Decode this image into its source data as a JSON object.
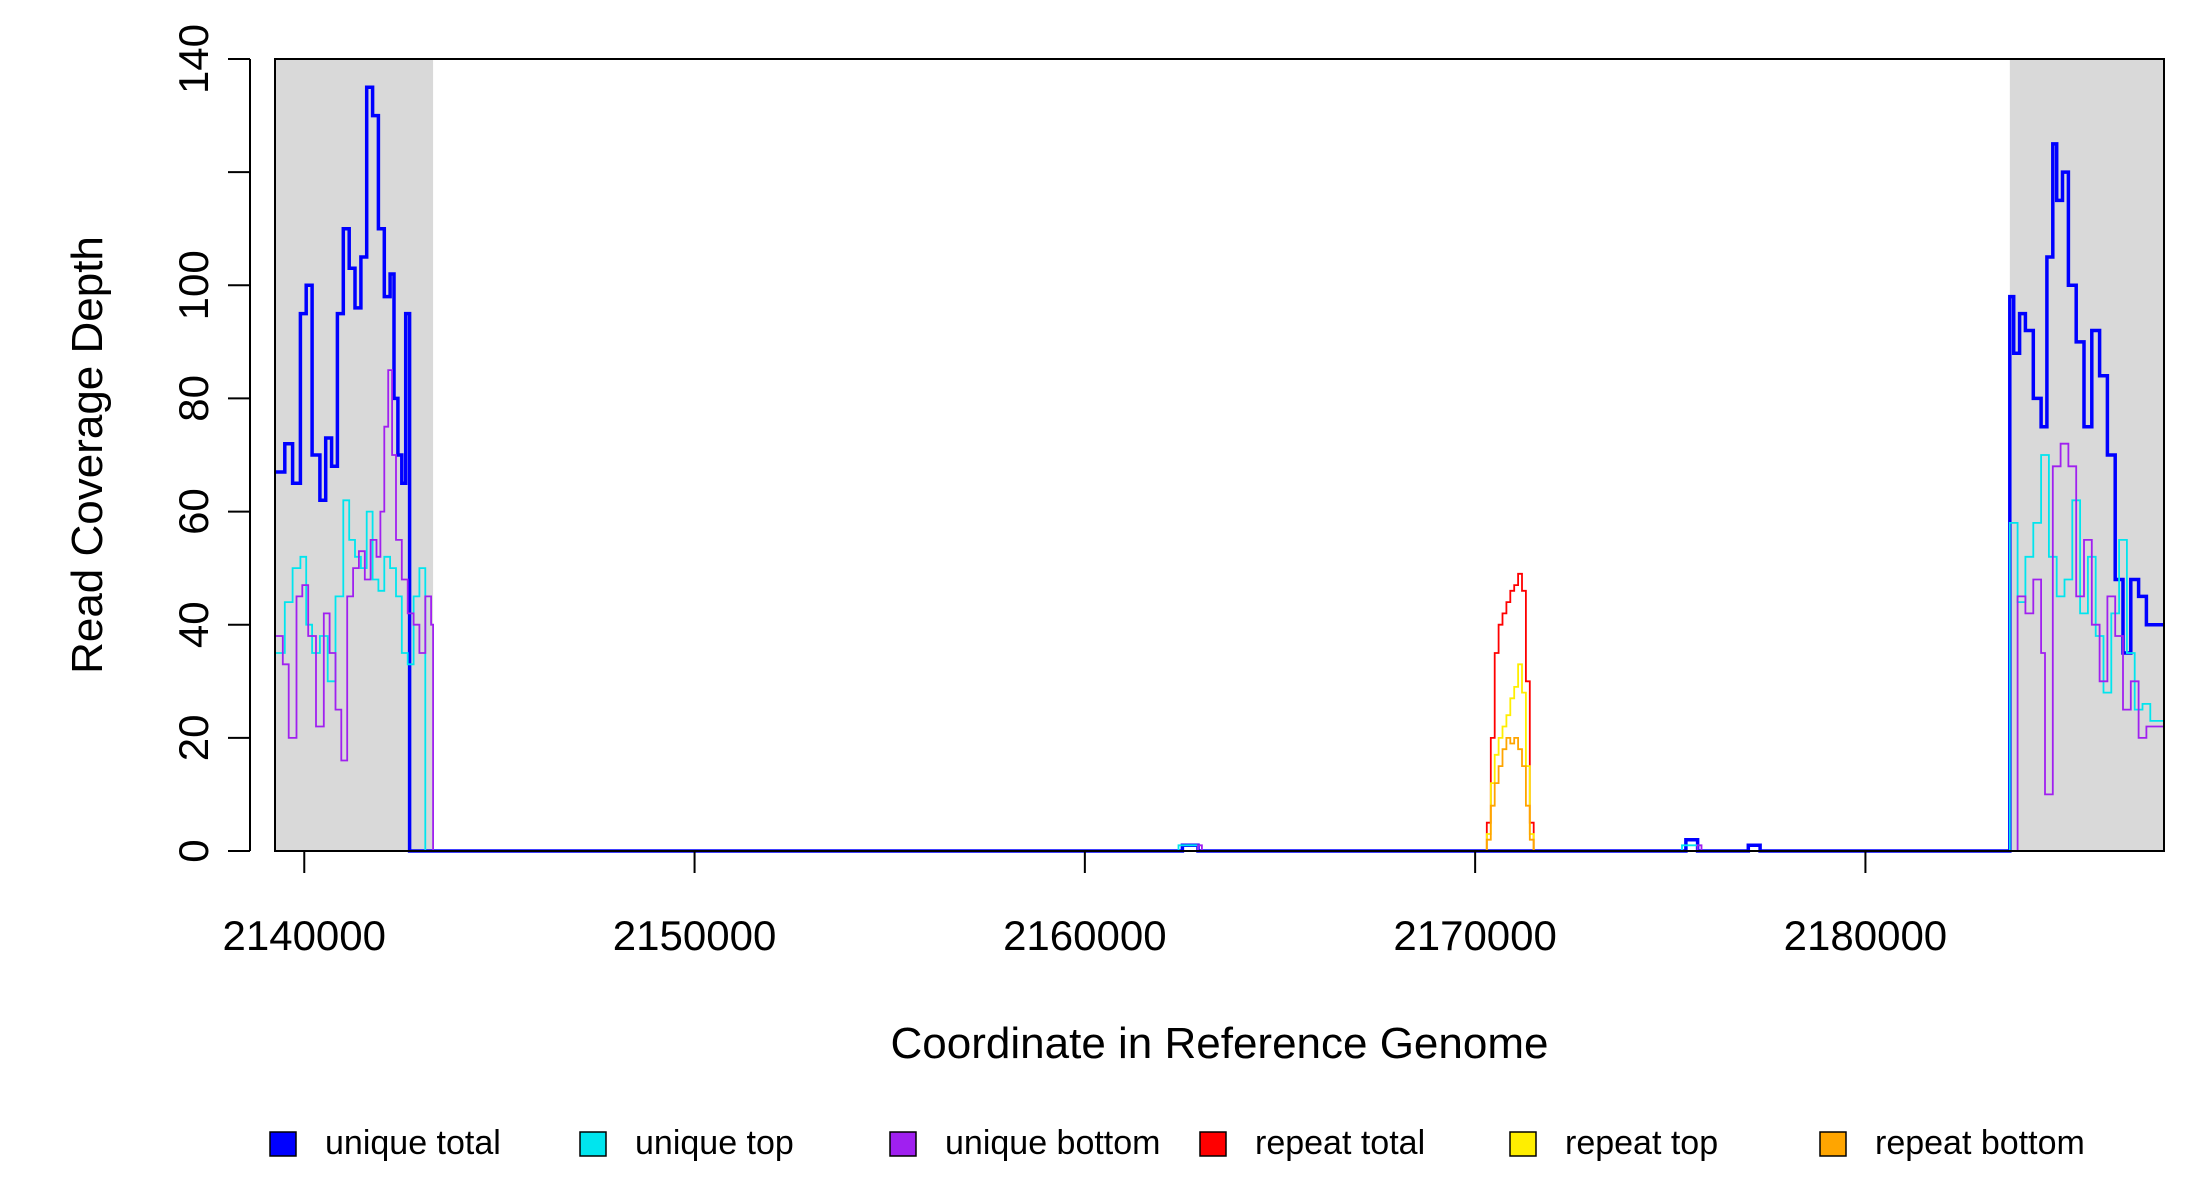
{
  "chart_data": {
    "type": "line",
    "xlabel": "Coordinate in Reference Genome",
    "ylabel": "Read Coverage Depth",
    "xlim": [
      2139250,
      2187650
    ],
    "ylim": [
      0,
      140
    ],
    "x_ticks": [
      2140000,
      2150000,
      2160000,
      2170000,
      2180000
    ],
    "x_tick_labels": [
      "2140000",
      "2150000",
      "2160000",
      "2170000",
      "2180000"
    ],
    "y_ticks": [
      0,
      20,
      40,
      60,
      80,
      100,
      120,
      140
    ],
    "y_tick_labels": [
      "0",
      "20",
      "40",
      "60",
      "80",
      "100",
      "",
      "140"
    ],
    "shaded_regions": [
      {
        "x0": 2139250,
        "x1": 2143300,
        "color": "#d9d9d9"
      },
      {
        "x0": 2183700,
        "x1": 2187650,
        "color": "#d9d9d9"
      }
    ],
    "legend_position": "bottom",
    "series": [
      {
        "name": "unique total",
        "color": "#0000ff",
        "x": [
          2139250,
          2139500,
          2139700,
          2139900,
          2140050,
          2140200,
          2140400,
          2140550,
          2140700,
          2140850,
          2141000,
          2141150,
          2141300,
          2141450,
          2141600,
          2141750,
          2141900,
          2142050,
          2142200,
          2142300,
          2142400,
          2142500,
          2142600,
          2142700,
          2142800,
          2142900,
          2143000,
          2143100,
          2143200,
          2143300,
          2143350,
          2143400,
          2150000,
          2160000,
          2162500,
          2162900,
          2163000,
          2170000,
          2175400,
          2175700,
          2175800,
          2177000,
          2177300,
          2177400,
          2183600,
          2183700,
          2183800,
          2183950,
          2184100,
          2184300,
          2184500,
          2184650,
          2184800,
          2184900,
          2185050,
          2185200,
          2185400,
          2185600,
          2185800,
          2186000,
          2186200,
          2186400,
          2186600,
          2186800,
          2187000,
          2187200,
          2187400,
          2187650
        ],
        "y": [
          67,
          72,
          65,
          95,
          100,
          70,
          62,
          73,
          68,
          95,
          110,
          103,
          96,
          105,
          135,
          130,
          110,
          98,
          102,
          80,
          70,
          65,
          95,
          0,
          0,
          0,
          0,
          0,
          0,
          0,
          0,
          0,
          0,
          0,
          1,
          0,
          0,
          0,
          2,
          0,
          0,
          1,
          0,
          0,
          0,
          98,
          88,
          95,
          92,
          80,
          75,
          105,
          125,
          115,
          120,
          100,
          90,
          75,
          92,
          84,
          70,
          48,
          35,
          48,
          45,
          40,
          40,
          40
        ]
      },
      {
        "name": "unique top",
        "color": "#00e5ee",
        "x": [
          2139250,
          2139500,
          2139700,
          2139900,
          2140050,
          2140200,
          2140400,
          2140600,
          2140800,
          2141000,
          2141150,
          2141300,
          2141450,
          2141600,
          2141750,
          2141900,
          2142050,
          2142200,
          2142350,
          2142500,
          2142650,
          2142800,
          2142950,
          2143100,
          2143250,
          2143350,
          2143400,
          2150000,
          2162400,
          2162900,
          2163000,
          2175300,
          2175700,
          2175800,
          2183600,
          2183700,
          2183900,
          2184100,
          2184300,
          2184500,
          2184700,
          2184900,
          2185100,
          2185300,
          2185500,
          2185700,
          2185900,
          2186100,
          2186300,
          2186500,
          2186700,
          2186900,
          2187100,
          2187300,
          2187650
        ],
        "y": [
          35,
          44,
          50,
          52,
          40,
          35,
          38,
          30,
          45,
          62,
          55,
          52,
          50,
          60,
          48,
          46,
          52,
          50,
          45,
          35,
          33,
          45,
          50,
          0,
          0,
          0,
          0,
          0,
          1,
          0,
          0,
          1,
          0,
          0,
          0,
          58,
          44,
          52,
          58,
          70,
          52,
          45,
          48,
          62,
          42,
          52,
          38,
          28,
          42,
          55,
          35,
          25,
          26,
          23,
          18
        ]
      },
      {
        "name": "unique bottom",
        "color": "#a020f0",
        "x": [
          2139250,
          2139450,
          2139600,
          2139800,
          2139950,
          2140100,
          2140300,
          2140500,
          2140650,
          2140800,
          2140950,
          2141100,
          2141250,
          2141400,
          2141550,
          2141700,
          2141850,
          2141950,
          2142050,
          2142150,
          2142250,
          2142350,
          2142500,
          2142650,
          2142800,
          2142950,
          2143100,
          2143250,
          2143300,
          2143350,
          2143400,
          2150000,
          2162500,
          2162900,
          2163000,
          2175400,
          2175700,
          2175800,
          2183600,
          2183700,
          2183900,
          2184100,
          2184300,
          2184500,
          2184600,
          2184800,
          2185000,
          2185200,
          2185400,
          2185600,
          2185800,
          2186000,
          2186200,
          2186400,
          2186600,
          2186800,
          2187000,
          2187200,
          2187400,
          2187650
        ],
        "y": [
          38,
          33,
          20,
          45,
          47,
          38,
          22,
          42,
          35,
          25,
          16,
          45,
          50,
          53,
          48,
          55,
          52,
          60,
          75,
          85,
          70,
          55,
          48,
          42,
          40,
          35,
          45,
          40,
          0,
          0,
          0,
          0,
          0,
          1,
          0,
          0,
          1,
          0,
          0,
          0,
          45,
          42,
          48,
          35,
          10,
          68,
          72,
          68,
          45,
          55,
          40,
          30,
          45,
          38,
          25,
          30,
          20,
          22,
          22,
          20
        ]
      },
      {
        "name": "repeat total",
        "color": "#ff0000",
        "x": [
          2139250,
          2170200,
          2170300,
          2170400,
          2170500,
          2170600,
          2170700,
          2170800,
          2170900,
          2171000,
          2171100,
          2171200,
          2171300,
          2171400,
          2171500,
          2187650
        ],
        "y": [
          0,
          0,
          5,
          20,
          35,
          40,
          42,
          44,
          46,
          47,
          49,
          46,
          30,
          5,
          0,
          0
        ]
      },
      {
        "name": "repeat top",
        "color": "#ffee00",
        "x": [
          2139250,
          2170200,
          2170300,
          2170400,
          2170500,
          2170600,
          2170700,
          2170800,
          2170900,
          2171000,
          2171100,
          2171200,
          2171300,
          2171400,
          2171500,
          2187650
        ],
        "y": [
          0,
          0,
          3,
          12,
          17,
          20,
          22,
          24,
          27,
          29,
          33,
          28,
          15,
          3,
          0,
          0
        ]
      },
      {
        "name": "repeat bottom",
        "color": "#ffa500",
        "x": [
          2139250,
          2170200,
          2170300,
          2170400,
          2170500,
          2170600,
          2170700,
          2170800,
          2170900,
          2171000,
          2171100,
          2171200,
          2171300,
          2171400,
          2171500,
          2187650
        ],
        "y": [
          0,
          0,
          2,
          8,
          12,
          15,
          18,
          20,
          19,
          20,
          18,
          15,
          8,
          2,
          0,
          0
        ]
      }
    ]
  }
}
